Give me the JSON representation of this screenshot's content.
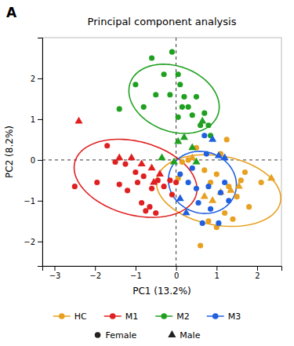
{
  "chart_data": {
    "type": "scatter",
    "title": "Principal component analysis",
    "annotations": [
      "A"
    ],
    "xlabel": "PC1 (13.2%)",
    "ylabel": "PC2 (8.2%)",
    "xlim": [
      -3.3,
      2.6
    ],
    "ylim": [
      -2.6,
      3.0
    ],
    "xticks": [
      -3,
      -2,
      -1,
      0,
      1,
      2
    ],
    "yticks": [
      -2,
      -1,
      0,
      1,
      2
    ],
    "grid": false,
    "legend": "bottom",
    "reference_x": [
      0
    ],
    "reference_y": [
      0
    ],
    "markers": [
      {
        "name": "Female",
        "marker": "circle"
      },
      {
        "name": "Male",
        "marker": "triangle"
      }
    ],
    "series": [
      {
        "name": "HC",
        "color": "#E8A020",
        "ellipse": {
          "cx": 1.05,
          "cy": -0.75,
          "rx": 1.55,
          "ry": 0.85,
          "angle": -10
        },
        "groups": [
          {
            "x": [
              0.05,
              0.15,
              0.3,
              0.5,
              0.7,
              0.85,
              1.0,
              1.1,
              1.25,
              1.3,
              1.5,
              1.6,
              1.7,
              1.8,
              0.6,
              0.8,
              1.0,
              1.2,
              1.4,
              2.1
            ],
            "values": [
              -0.45,
              -0.05,
              0.0,
              0.3,
              -0.25,
              -0.55,
              -0.35,
              0.15,
              0.5,
              -0.65,
              -0.9,
              -0.5,
              -0.3,
              -1.15,
              -2.1,
              -1.5,
              -1.65,
              -1.3,
              -1.45,
              -0.55
            ]
          },
          {
            "x": [
              0.4,
              0.9,
              1.1,
              1.35,
              1.55,
              2.35,
              0.7
            ],
            "values": [
              0.05,
              -1.0,
              -0.8,
              -0.75,
              -0.65,
              -0.45,
              -0.9
            ]
          }
        ]
      },
      {
        "name": "M1",
        "color": "#E02020",
        "ellipse": {
          "cx": -1.0,
          "cy": -0.45,
          "rx": 1.55,
          "ry": 0.9,
          "angle": -15
        },
        "groups": [
          {
            "x": [
              -2.5,
              -1.95,
              -1.7,
              -1.5,
              -1.4,
              -1.25,
              -1.2,
              -1.0,
              -0.95,
              -0.85,
              -0.8,
              -0.75,
              -0.65,
              -0.6,
              -0.5,
              -0.45,
              -0.3,
              -0.15,
              -0.1,
              0.0
            ],
            "values": [
              -0.65,
              -0.55,
              0.35,
              -0.05,
              -0.6,
              -0.1,
              -0.75,
              -0.3,
              -0.55,
              -1.05,
              -0.4,
              -1.25,
              -1.15,
              -0.7,
              -1.3,
              -0.5,
              -0.65,
              -0.5,
              -0.85,
              -0.55
            ]
          },
          {
            "x": [
              -2.4,
              -1.4,
              -1.1,
              -0.85,
              -0.6,
              -0.55,
              -0.4
            ],
            "values": [
              0.95,
              0.05,
              0.05,
              -0.1,
              -0.2,
              -0.55,
              -0.35
            ]
          }
        ]
      },
      {
        "name": "M2",
        "color": "#20A020",
        "ellipse": {
          "cx": -0.05,
          "cy": 1.5,
          "rx": 1.15,
          "ry": 0.8,
          "angle": -20
        },
        "groups": [
          {
            "x": [
              -1.4,
              -1.0,
              -0.8,
              -0.6,
              -0.5,
              -0.3,
              -0.1,
              0.05,
              0.1,
              0.2,
              0.3,
              0.4,
              0.5,
              0.6,
              0.7,
              0.8,
              0.85,
              0.05,
              0.15,
              -0.15
            ],
            "values": [
              1.25,
              1.85,
              1.3,
              2.5,
              1.6,
              2.1,
              2.65,
              2.1,
              1.85,
              1.55,
              1.3,
              1.1,
              1.55,
              0.85,
              1.15,
              0.85,
              0.6,
              1.05,
              1.3,
              1.6
            ]
          },
          {
            "x": [
              -0.35,
              0.05,
              0.2,
              0.4,
              0.5,
              -0.05,
              0.65
            ],
            "values": [
              0.05,
              0.45,
              0.55,
              0.3,
              -0.05,
              -0.05,
              0.95
            ]
          }
        ]
      },
      {
        "name": "M3",
        "color": "#2060E0",
        "ellipse": {
          "cx": 0.65,
          "cy": -0.55,
          "rx": 0.85,
          "ry": 0.75,
          "angle": -20
        },
        "groups": [
          {
            "x": [
              0.1,
              0.3,
              0.5,
              0.55,
              0.65,
              0.8,
              0.85,
              1.05,
              1.1,
              1.2,
              1.3,
              0.4,
              0.7,
              0.75
            ],
            "values": [
              -0.35,
              -0.55,
              -0.7,
              -1.05,
              -1.55,
              -0.65,
              -1.2,
              -1.55,
              -0.8,
              -0.55,
              -1.0,
              -0.2,
              0.6,
              0.15
            ]
          },
          {
            "x": [
              0.1,
              0.25,
              0.9,
              1.05,
              1.2
            ],
            "values": [
              -0.95,
              -1.3,
              0.5,
              0.1,
              0.05
            ]
          }
        ]
      }
    ]
  }
}
